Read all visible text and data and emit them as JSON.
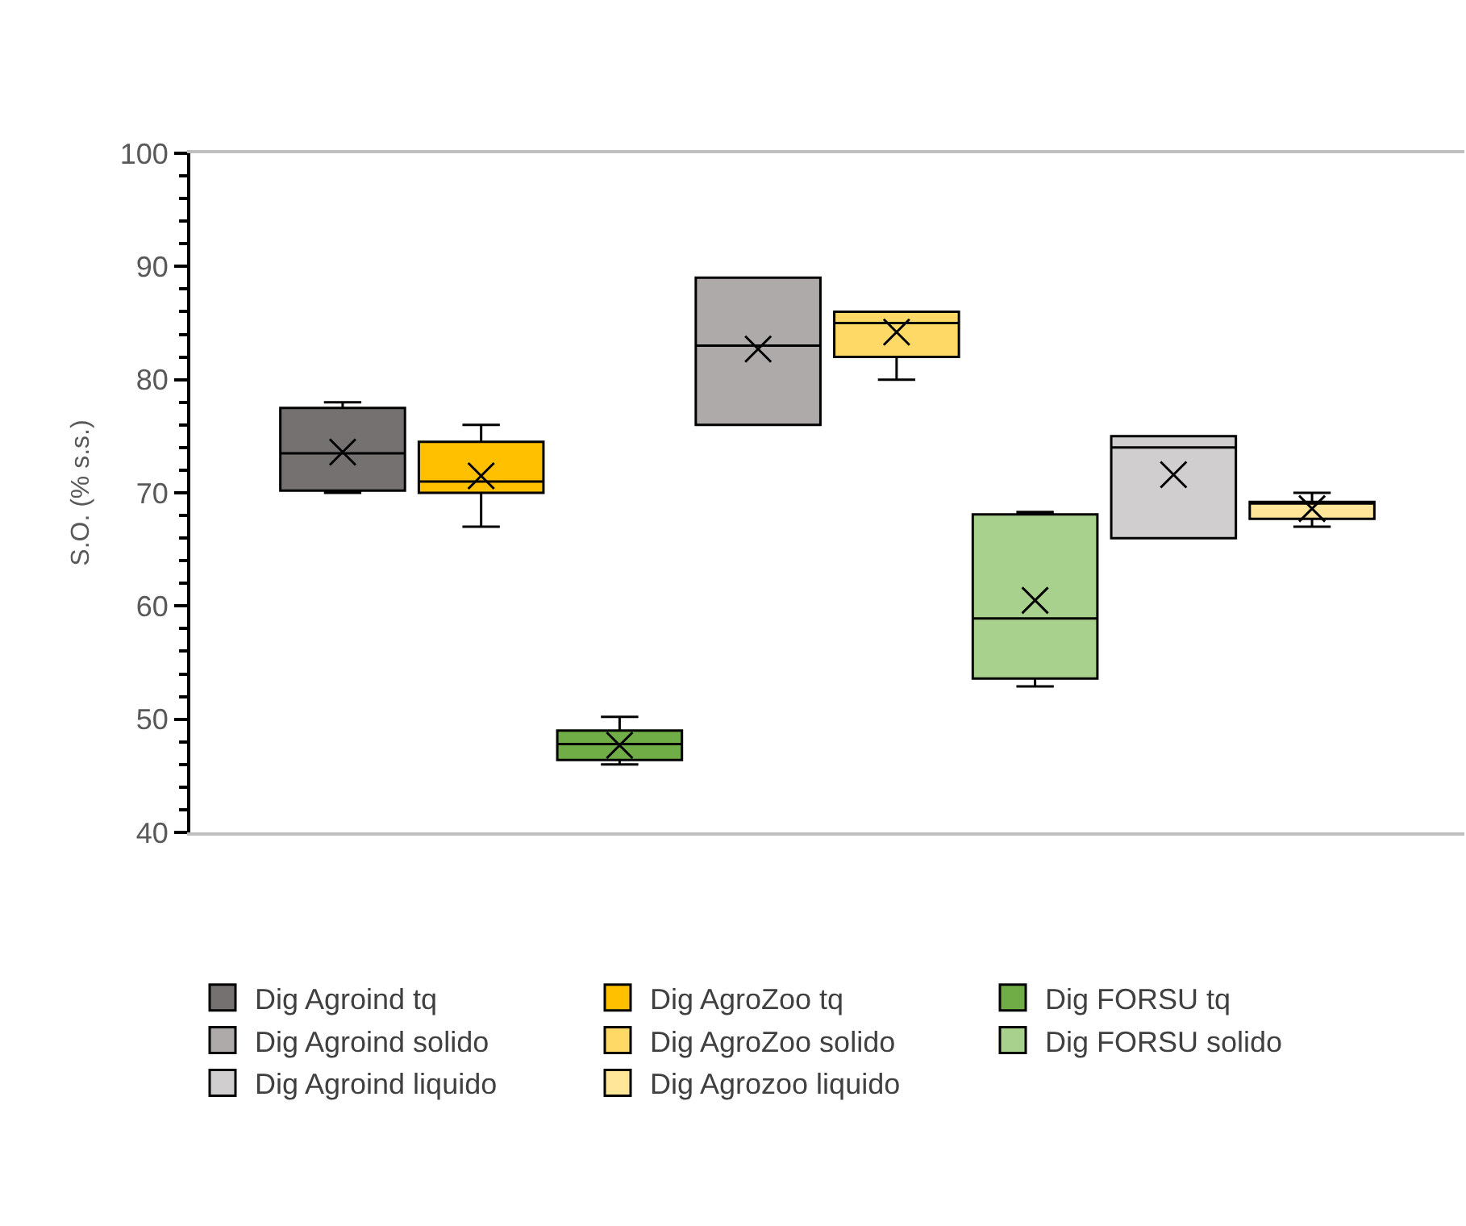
{
  "chart_data": {
    "type": "box",
    "ylabel": "S.O. (% s.s.)",
    "categories": [
      null
    ],
    "ylim": [
      40,
      100
    ],
    "yticks": [
      40,
      50,
      60,
      70,
      80,
      90,
      100
    ],
    "legend": "bottom",
    "marker": "cross",
    "series": [
      {
        "name": "Dig Agroind tq",
        "color": "#767171",
        "boxes": [
          {
            "low": 70.0,
            "q1": 70.2,
            "median": 73.5,
            "q3": 77.5,
            "high": 78.0,
            "mean": 73.6
          }
        ]
      },
      {
        "name": "Dig AgroZoo tq",
        "color": "#ffc000",
        "boxes": [
          {
            "low": 67,
            "q1": 70,
            "median": 71,
            "q3": 74.5,
            "high": 76,
            "mean": 71.5
          }
        ]
      },
      {
        "name": "Dig FORSU tq",
        "color": "#70ad47",
        "boxes": [
          {
            "low": 46.0,
            "q1": 46.4,
            "median": 47.8,
            "q3": 49.0,
            "high": 50.2,
            "mean": 47.7
          }
        ]
      },
      {
        "name": "Dig Agroind solido",
        "color": "#aeaaaa",
        "boxes": [
          {
            "low": 76,
            "q1": 76,
            "median": 83,
            "q3": 89,
            "high": 89,
            "mean": 82.7
          }
        ]
      },
      {
        "name": "Dig AgroZoo solido",
        "color": "#ffd966",
        "boxes": [
          {
            "low": 80,
            "q1": 82,
            "median": 85,
            "q3": 86,
            "high": 86,
            "mean": 84.2
          }
        ]
      },
      {
        "name": "Dig FORSU solido",
        "color": "#a9d18e",
        "boxes": [
          {
            "low": 52.9,
            "q1": 53.6,
            "median": 58.9,
            "q3": 68.1,
            "high": 68.3,
            "mean": 60.5
          }
        ]
      },
      {
        "name": "Dig Agroind liquido",
        "color": "#d0cece",
        "boxes": [
          {
            "low": 66,
            "q1": 66,
            "median": 74,
            "q3": 75,
            "high": 75,
            "mean": 71.6
          }
        ]
      },
      {
        "name": "Dig Agrozoo liquido",
        "color": "#ffe699",
        "boxes": [
          {
            "low": 67,
            "q1": 67.7,
            "median": 69.1,
            "q3": 69.2,
            "high": 70,
            "mean": 68.6
          }
        ]
      }
    ]
  }
}
